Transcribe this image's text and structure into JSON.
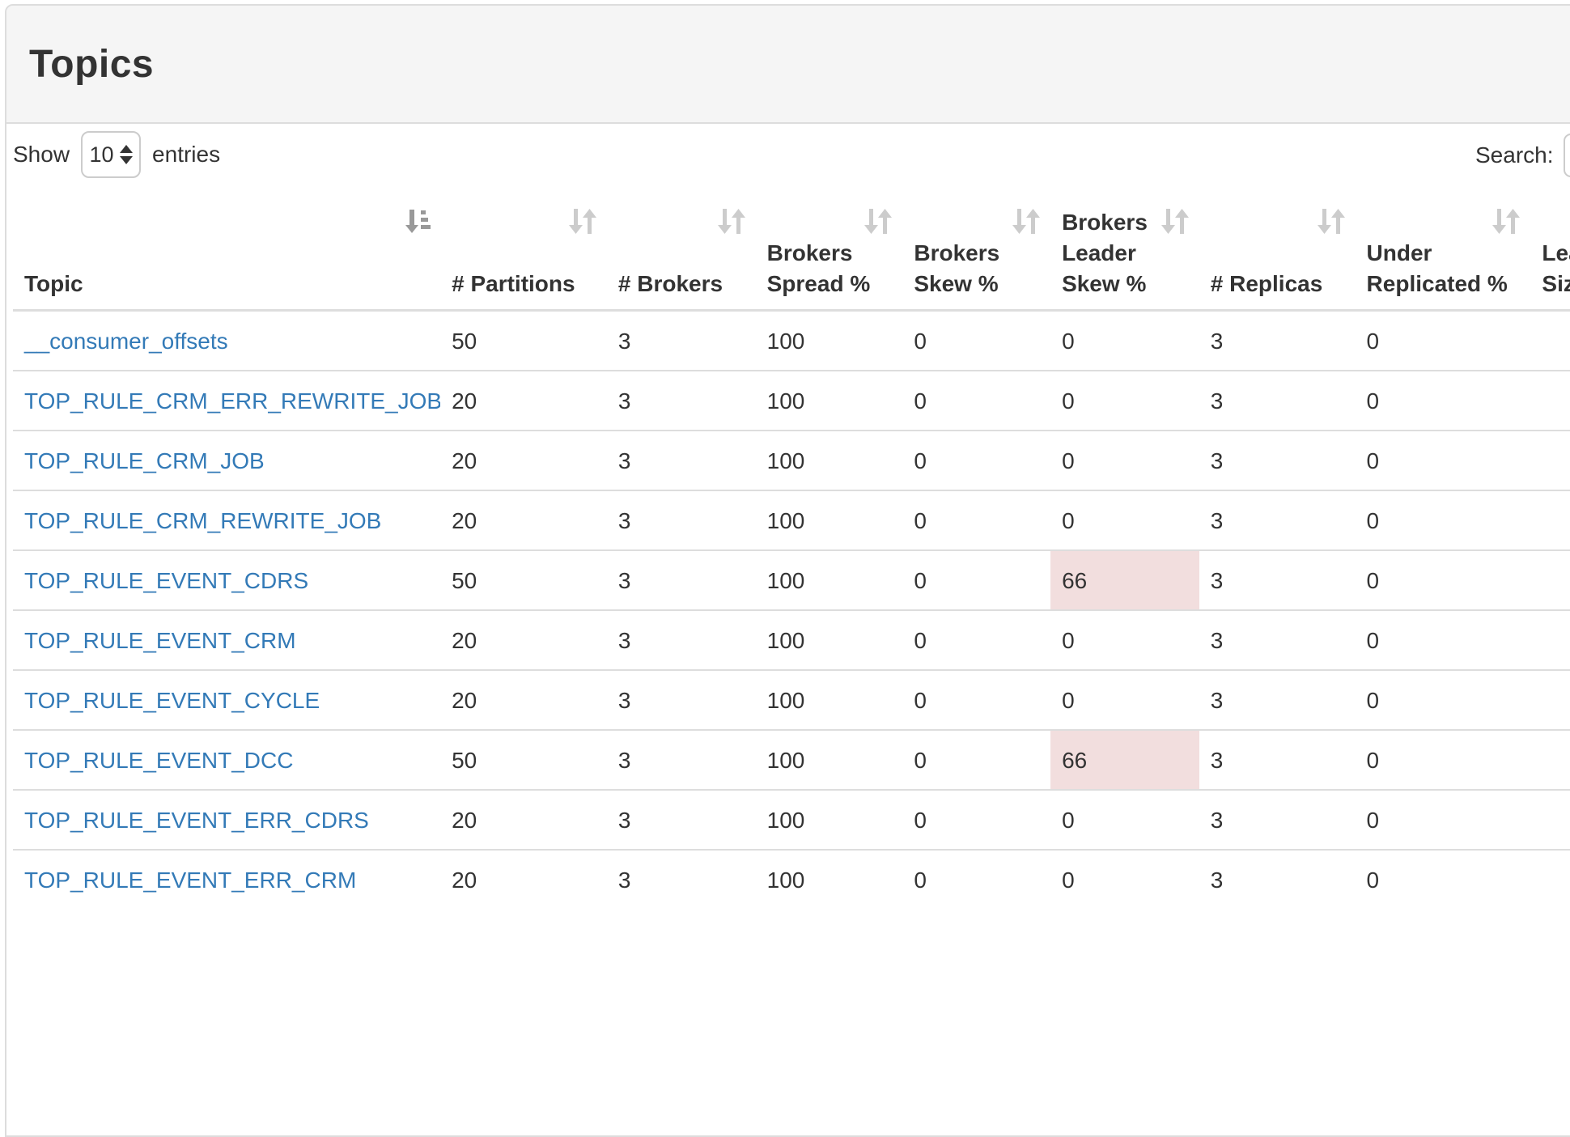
{
  "panel": {
    "title": "Topics"
  },
  "controls": {
    "show_label": "Show",
    "page_size": "10",
    "entries_label": "entries",
    "search_label": "Search:",
    "search_value": ""
  },
  "table": {
    "columns": [
      {
        "key": "topic",
        "label": "Topic",
        "sort": "active"
      },
      {
        "key": "partitions",
        "label": "# Partitions",
        "sort": "inactive"
      },
      {
        "key": "brokers",
        "label": "# Brokers",
        "sort": "inactive"
      },
      {
        "key": "brokers-spread",
        "label": "Brokers Spread %",
        "sort": "inactive"
      },
      {
        "key": "brokers-skew",
        "label": "Brokers Skew %",
        "sort": "inactive"
      },
      {
        "key": "brokers-leader-skew",
        "label": "Brokers Leader Skew %",
        "sort": "inactive"
      },
      {
        "key": "replicas",
        "label": "# Replicas",
        "sort": "inactive"
      },
      {
        "key": "under-replicated",
        "label": "Under Replicated %",
        "sort": "inactive"
      },
      {
        "key": "leader-size",
        "label": "Leader Size",
        "sort": "inactive"
      }
    ],
    "rows": [
      {
        "cells": [
          "__consumer_offsets",
          "50",
          "3",
          "100",
          "0",
          "0",
          "3",
          "0",
          ""
        ],
        "warn_cols": []
      },
      {
        "cells": [
          "TOP_RULE_CRM_ERR_REWRITE_JOB",
          "20",
          "3",
          "100",
          "0",
          "0",
          "3",
          "0",
          ""
        ],
        "warn_cols": []
      },
      {
        "cells": [
          "TOP_RULE_CRM_JOB",
          "20",
          "3",
          "100",
          "0",
          "0",
          "3",
          "0",
          ""
        ],
        "warn_cols": []
      },
      {
        "cells": [
          "TOP_RULE_CRM_REWRITE_JOB",
          "20",
          "3",
          "100",
          "0",
          "0",
          "3",
          "0",
          ""
        ],
        "warn_cols": []
      },
      {
        "cells": [
          "TOP_RULE_EVENT_CDRS",
          "50",
          "3",
          "100",
          "0",
          "66",
          "3",
          "0",
          ""
        ],
        "warn_cols": [
          5
        ]
      },
      {
        "cells": [
          "TOP_RULE_EVENT_CRM",
          "20",
          "3",
          "100",
          "0",
          "0",
          "3",
          "0",
          ""
        ],
        "warn_cols": []
      },
      {
        "cells": [
          "TOP_RULE_EVENT_CYCLE",
          "20",
          "3",
          "100",
          "0",
          "0",
          "3",
          "0",
          ""
        ],
        "warn_cols": []
      },
      {
        "cells": [
          "TOP_RULE_EVENT_DCC",
          "50",
          "3",
          "100",
          "0",
          "66",
          "3",
          "0",
          ""
        ],
        "warn_cols": [
          5
        ]
      },
      {
        "cells": [
          "TOP_RULE_EVENT_ERR_CDRS",
          "20",
          "3",
          "100",
          "0",
          "0",
          "3",
          "0",
          ""
        ],
        "warn_cols": []
      },
      {
        "cells": [
          "TOP_RULE_EVENT_ERR_CRM",
          "20",
          "3",
          "100",
          "0",
          "0",
          "3",
          "0",
          ""
        ],
        "warn_cols": []
      }
    ]
  },
  "colors": {
    "link": "#337ab7",
    "warn_cell_bg": "#f2dede",
    "panel_heading_bg": "#f5f5f5",
    "border": "#dddddd",
    "sort_active_icon": "#999999",
    "sort_inactive_icon": "#cccccc"
  }
}
